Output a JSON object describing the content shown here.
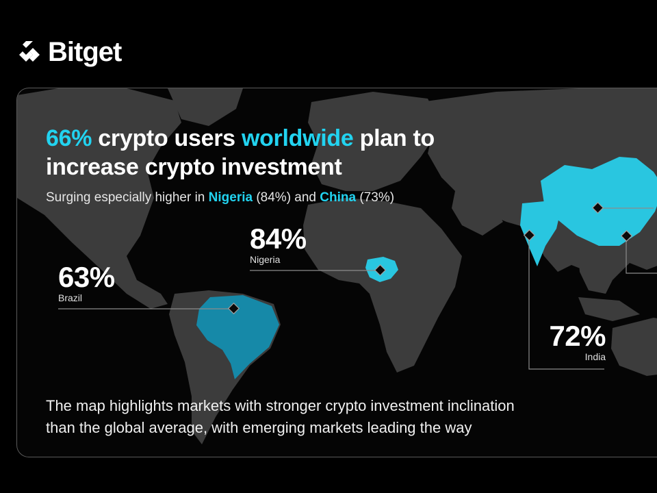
{
  "brand": {
    "name": "Bitget",
    "logo_icon": "bitget-logo-icon"
  },
  "headline": {
    "part1": "66%",
    "part2": " crypto users ",
    "part3": "worldwide",
    "part4": " plan to",
    "line2": "increase crypto investment"
  },
  "subheadline": {
    "prefix": "Surging especially higher in ",
    "country1": "Nigeria",
    "value1": " (84%) and ",
    "country2": "China",
    "value2": " (73%)"
  },
  "markers": [
    {
      "country": "Nigeria",
      "value": "84%"
    },
    {
      "country": "Brazil",
      "value": "63%"
    },
    {
      "country": "India",
      "value": "72%"
    }
  ],
  "footer": {
    "line1": "The map highlights markets with stronger crypto investment inclination",
    "line2": "than the global average, with emerging markets leading the way"
  },
  "colors": {
    "background": "#000000",
    "land": "#3c3c3c",
    "highlight_cyan": "#29c6e0",
    "highlight_blue": "#1689a8",
    "accent_text": "#22d3f0"
  }
}
